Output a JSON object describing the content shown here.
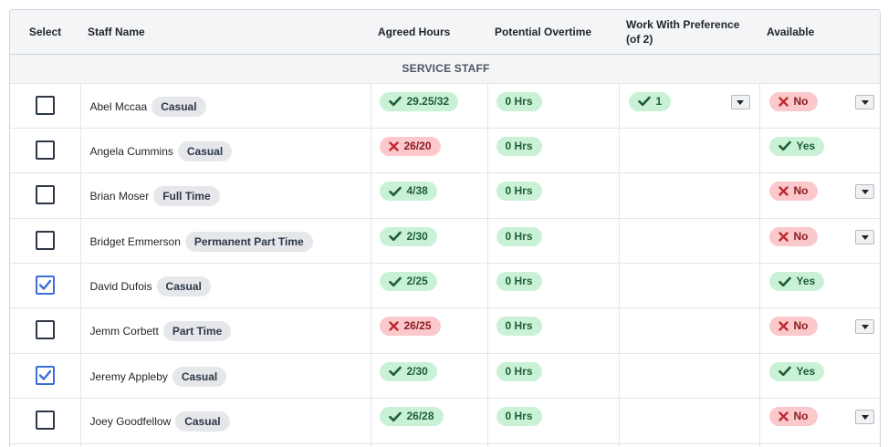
{
  "columns": {
    "select": "Select",
    "staff_name": "Staff Name",
    "agreed_hours": "Agreed Hours",
    "potential_overtime": "Potential Overtime",
    "work_with_preference": "Work With Preference (of 2)",
    "available": "Available"
  },
  "group_label": "SERVICE STAFF",
  "colors": {
    "green_pill": "#c9f1d6",
    "red_pill": "#fbc9cb",
    "checked_blue": "#3b6fd8"
  },
  "rows": [
    {
      "selected": false,
      "name": "Abel Mccaa",
      "type": "Casual",
      "agreed": "29.25/32",
      "agreed_ok": true,
      "overtime": "0 Hrs",
      "preference": "1",
      "available": "No",
      "available_ok": false
    },
    {
      "selected": false,
      "name": "Angela Cummins",
      "type": "Casual",
      "agreed": "26/20",
      "agreed_ok": false,
      "overtime": "0 Hrs",
      "preference": "",
      "available": "Yes",
      "available_ok": true
    },
    {
      "selected": false,
      "name": "Brian Moser",
      "type": "Full Time",
      "agreed": "4/38",
      "agreed_ok": true,
      "overtime": "0 Hrs",
      "preference": "",
      "available": "No",
      "available_ok": false
    },
    {
      "selected": false,
      "name": "Bridget Emmerson",
      "type": "Permanent Part Time",
      "agreed": "2/30",
      "agreed_ok": true,
      "overtime": "0 Hrs",
      "preference": "",
      "available": "No",
      "available_ok": false
    },
    {
      "selected": true,
      "name": "David Dufois",
      "type": "Casual",
      "agreed": "2/25",
      "agreed_ok": true,
      "overtime": "0 Hrs",
      "preference": "",
      "available": "Yes",
      "available_ok": true
    },
    {
      "selected": false,
      "name": "Jemm Corbett",
      "type": "Part Time",
      "agreed": "26/25",
      "agreed_ok": false,
      "overtime": "0 Hrs",
      "preference": "",
      "available": "No",
      "available_ok": false
    },
    {
      "selected": true,
      "name": "Jeremy Appleby",
      "type": "Casual",
      "agreed": "2/30",
      "agreed_ok": true,
      "overtime": "0 Hrs",
      "preference": "",
      "available": "Yes",
      "available_ok": true
    },
    {
      "selected": false,
      "name": "Joey Goodfellow",
      "type": "Casual",
      "agreed": "26/28",
      "agreed_ok": true,
      "overtime": "0 Hrs",
      "preference": "",
      "available": "No",
      "available_ok": false
    }
  ]
}
